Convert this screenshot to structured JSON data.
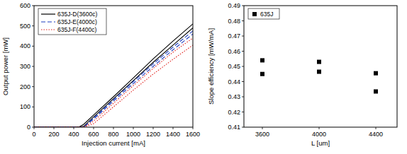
{
  "chart_data": [
    {
      "type": "line",
      "xlabel": "Injection current [mA]",
      "ylabel": "Output power [mW]",
      "x": [
        0,
        200,
        400,
        450,
        500,
        600,
        800,
        1000,
        1200,
        1400,
        1600
      ],
      "xlim": [
        0,
        1600
      ],
      "xticks": [
        0,
        200,
        400,
        600,
        800,
        1000,
        1200,
        1400,
        1600
      ],
      "ylim": [
        0,
        600
      ],
      "yticks": [
        0,
        100,
        200,
        300,
        400,
        500,
        600
      ],
      "grid": false,
      "legend": "upper left",
      "series": [
        {
          "name": "635J-D(3600c)",
          "color": "#000000",
          "line_style": "solid",
          "values": [
            0,
            0,
            0,
            0,
            14,
            60,
            150,
            243,
            337,
            425,
            510
          ]
        },
        {
          "name": "635J-D(3600c)",
          "color": "#000000",
          "line_style": "solid",
          "values": [
            0,
            0,
            0,
            0,
            4,
            50,
            140,
            230,
            320,
            405,
            490
          ]
        },
        {
          "name": "635J-E(4000c)",
          "color": "#1f3fbf",
          "line_style": "dashed",
          "values": [
            0,
            0,
            0,
            0,
            0,
            45,
            135,
            225,
            312,
            395,
            475
          ]
        },
        {
          "name": "635J-E(4000c)",
          "color": "#1f3fbf",
          "line_style": "dashed",
          "values": [
            0,
            0,
            0,
            0,
            0,
            40,
            128,
            215,
            300,
            382,
            460
          ]
        },
        {
          "name": "635J-F(4400c)",
          "color": "#e0201b",
          "line_style": "dotted",
          "values": [
            0,
            0,
            0,
            0,
            0,
            30,
            118,
            205,
            290,
            370,
            440
          ]
        },
        {
          "name": "635J-F(4400c)",
          "color": "#e0201b",
          "line_style": "dotted",
          "values": [
            0,
            0,
            0,
            0,
            0,
            17,
            100,
            183,
            262,
            335,
            405
          ]
        }
      ]
    },
    {
      "type": "scatter",
      "xlabel": "L [um]",
      "ylabel": "Slope efficiency [mW/mA]",
      "x": [
        3600,
        3600,
        4000,
        4000,
        4400,
        4400
      ],
      "xlim": [
        3470,
        4550
      ],
      "xticks": [
        3600,
        4000,
        4400
      ],
      "ylim": [
        0.41,
        0.49
      ],
      "yticks": [
        0.41,
        0.42,
        0.43,
        0.44,
        0.45,
        0.46,
        0.47,
        0.48,
        0.49
      ],
      "grid": false,
      "legend": "upper left",
      "series": [
        {
          "name": "635J",
          "color": "#000000",
          "marker": "square",
          "values": [
            0.454,
            0.445,
            0.453,
            0.4465,
            0.4455,
            0.4335
          ]
        }
      ]
    }
  ]
}
